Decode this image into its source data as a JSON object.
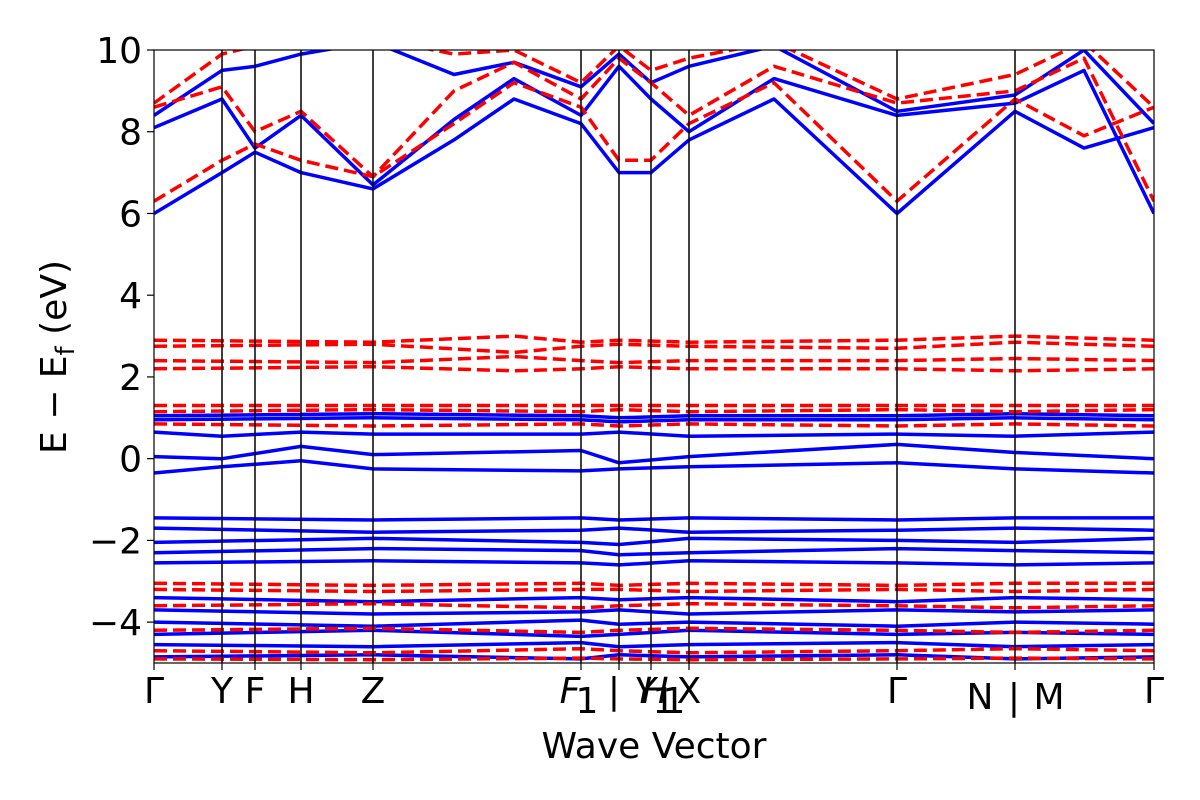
{
  "chart_data": {
    "type": "line",
    "xlabel": "Wave Vector",
    "ylabel": "E − E_f (eV)",
    "ylabel_parts": {
      "prefix": "E − E",
      "subscript": "f",
      "suffix": " (eV)"
    },
    "ylim": [
      -5,
      10
    ],
    "y_ticks": [
      -4,
      -2,
      0,
      2,
      4,
      6,
      8,
      10
    ],
    "y_tick_labels": [
      "−4",
      "−2",
      "0",
      "2",
      "4",
      "6",
      "8",
      "10"
    ],
    "k_points": [
      {
        "label": "Γ",
        "x": 0.0
      },
      {
        "label": "Y",
        "x": 0.068
      },
      {
        "label": "F",
        "x": 0.101
      },
      {
        "label": "H",
        "x": 0.147
      },
      {
        "label": "Z",
        "x": 0.219
      },
      {
        "label": "F₁ | Y₁",
        "x": 0.427,
        "x2": 0.465
      },
      {
        "label": "H₁",
        "x": 0.497
      },
      {
        "label": "X",
        "x": 0.535
      },
      {
        "label": "Γ",
        "x": 0.743
      },
      {
        "label": "N | M",
        "x": 0.861
      },
      {
        "label": "Γ",
        "x": 1.0
      }
    ],
    "tick_label_strings": [
      "Γ",
      "Y",
      "F",
      "H",
      "Z",
      "F",
      "1",
      "|",
      "Y",
      "H",
      "1",
      "1",
      "X",
      "Γ",
      "N",
      "|",
      "M",
      "Γ"
    ],
    "series": [
      {
        "color": "#0000ff",
        "style": "solid",
        "bands": [
          {
            "x": [
              0,
              0.068,
              0.101,
              0.147,
              0.219,
              0.3,
              0.36,
              0.427,
              0.465,
              0.497,
              0.535,
              0.62,
              0.743,
              0.861,
              0.93,
              1.0
            ],
            "y": [
              6.0,
              7.0,
              7.5,
              7.0,
              6.6,
              7.8,
              8.8,
              8.2,
              7.0,
              7.0,
              7.8,
              8.8,
              6.0,
              8.5,
              7.6,
              8.1
            ]
          },
          {
            "x": [
              0,
              0.068,
              0.101,
              0.147,
              0.219,
              0.3,
              0.36,
              0.427,
              0.465,
              0.497,
              0.535,
              0.62,
              0.743,
              0.861,
              0.93,
              1.0
            ],
            "y": [
              8.1,
              8.8,
              7.6,
              8.4,
              6.7,
              8.3,
              9.3,
              8.4,
              9.6,
              8.8,
              8.0,
              9.3,
              8.4,
              8.7,
              9.5,
              6.0
            ]
          },
          {
            "x": [
              0,
              0.068,
              0.101,
              0.147,
              0.219,
              0.3,
              0.36,
              0.427,
              0.465,
              0.497,
              0.535,
              0.62,
              0.743,
              0.861,
              0.93,
              1.0
            ],
            "y": [
              8.4,
              9.5,
              9.6,
              9.9,
              10.2,
              9.4,
              9.7,
              9.1,
              9.9,
              9.2,
              9.6,
              10.1,
              8.5,
              8.9,
              10.0,
              8.2
            ]
          },
          {
            "x": [
              0,
              0.219,
              0.427,
              0.465,
              0.535,
              0.743,
              0.861,
              1.0
            ],
            "y": [
              1.05,
              1.1,
              1.05,
              1.0,
              1.05,
              1.05,
              1.1,
              1.05
            ]
          },
          {
            "x": [
              0,
              0.219,
              0.427,
              0.465,
              0.535,
              0.743,
              0.861,
              1.0
            ],
            "y": [
              0.95,
              1.0,
              0.95,
              0.9,
              0.95,
              0.95,
              1.0,
              0.95
            ]
          },
          {
            "x": [
              0,
              0.068,
              0.147,
              0.219,
              0.427,
              0.465,
              0.535,
              0.743,
              0.861,
              1.0
            ],
            "y": [
              0.65,
              0.55,
              0.65,
              0.6,
              0.6,
              0.65,
              0.55,
              0.6,
              0.55,
              0.65
            ]
          },
          {
            "x": [
              0,
              0.068,
              0.147,
              0.219,
              0.427,
              0.465,
              0.535,
              0.743,
              0.861,
              1.0
            ],
            "y": [
              0.05,
              0.0,
              0.3,
              0.1,
              0.2,
              -0.1,
              0.05,
              0.35,
              0.15,
              0.0
            ]
          },
          {
            "x": [
              0,
              0.068,
              0.147,
              0.219,
              0.427,
              0.465,
              0.535,
              0.743,
              0.861,
              1.0
            ],
            "y": [
              -0.35,
              -0.2,
              -0.05,
              -0.25,
              -0.3,
              -0.25,
              -0.2,
              -0.1,
              -0.25,
              -0.35
            ]
          },
          {
            "x": [
              0,
              0.219,
              0.427,
              0.465,
              0.535,
              0.743,
              0.861,
              1.0
            ],
            "y": [
              -1.45,
              -1.5,
              -1.45,
              -1.5,
              -1.45,
              -1.5,
              -1.45,
              -1.45
            ]
          },
          {
            "x": [
              0,
              0.219,
              0.427,
              0.465,
              0.535,
              0.743,
              0.861,
              1.0
            ],
            "y": [
              -1.7,
              -1.8,
              -1.75,
              -1.7,
              -1.8,
              -1.75,
              -1.7,
              -1.75
            ]
          },
          {
            "x": [
              0,
              0.219,
              0.427,
              0.465,
              0.535,
              0.743,
              0.861,
              1.0
            ],
            "y": [
              -2.05,
              -1.95,
              -2.05,
              -2.1,
              -1.95,
              -2.0,
              -2.05,
              -1.95
            ]
          },
          {
            "x": [
              0,
              0.219,
              0.427,
              0.465,
              0.535,
              0.743,
              0.861,
              1.0
            ],
            "y": [
              -2.3,
              -2.2,
              -2.25,
              -2.35,
              -2.3,
              -2.2,
              -2.25,
              -2.3
            ]
          },
          {
            "x": [
              0,
              0.219,
              0.427,
              0.465,
              0.535,
              0.743,
              0.861,
              1.0
            ],
            "y": [
              -2.55,
              -2.5,
              -2.55,
              -2.6,
              -2.5,
              -2.55,
              -2.6,
              -2.55
            ]
          },
          {
            "x": [
              0,
              0.219,
              0.427,
              0.465,
              0.535,
              0.743,
              0.861,
              1.0
            ],
            "y": [
              -3.4,
              -3.5,
              -3.4,
              -3.45,
              -3.4,
              -3.5,
              -3.4,
              -3.45
            ]
          },
          {
            "x": [
              0,
              0.219,
              0.427,
              0.465,
              0.535,
              0.743,
              0.861,
              1.0
            ],
            "y": [
              -3.7,
              -3.8,
              -3.75,
              -3.7,
              -3.8,
              -3.7,
              -3.75,
              -3.7
            ]
          },
          {
            "x": [
              0,
              0.219,
              0.427,
              0.465,
              0.535,
              0.743,
              0.861,
              1.0
            ],
            "y": [
              -4.0,
              -4.1,
              -3.95,
              -4.05,
              -4.0,
              -4.1,
              -4.0,
              -4.05
            ]
          },
          {
            "x": [
              0,
              0.219,
              0.427,
              0.465,
              0.535,
              0.743,
              0.861,
              1.0
            ],
            "y": [
              -4.3,
              -4.2,
              -4.35,
              -4.3,
              -4.2,
              -4.3,
              -4.25,
              -4.3
            ]
          },
          {
            "x": [
              0,
              0.219,
              0.427,
              0.465,
              0.535,
              0.743,
              0.861,
              1.0
            ],
            "y": [
              -4.55,
              -4.6,
              -4.5,
              -4.6,
              -4.55,
              -4.5,
              -4.6,
              -4.55
            ]
          },
          {
            "x": [
              0,
              0.219,
              0.427,
              0.465,
              0.535,
              0.743,
              0.861,
              1.0
            ],
            "y": [
              -4.85,
              -4.8,
              -4.9,
              -4.8,
              -4.85,
              -4.8,
              -4.9,
              -4.85
            ]
          }
        ]
      },
      {
        "color": "#ff0000",
        "style": "dashed",
        "bands": [
          {
            "x": [
              0,
              0.068,
              0.101,
              0.147,
              0.219,
              0.3,
              0.36,
              0.427,
              0.465,
              0.497,
              0.535,
              0.62,
              0.743,
              0.861,
              0.93,
              1.0
            ],
            "y": [
              6.3,
              7.3,
              7.7,
              7.3,
              6.9,
              8.2,
              9.2,
              8.6,
              7.3,
              7.3,
              8.2,
              9.2,
              6.3,
              8.8,
              7.9,
              8.6
            ]
          },
          {
            "x": [
              0,
              0.068,
              0.101,
              0.147,
              0.219,
              0.3,
              0.36,
              0.427,
              0.465,
              0.497,
              0.535,
              0.62,
              0.743,
              0.861,
              0.93,
              1.0
            ],
            "y": [
              8.6,
              9.1,
              8.0,
              8.5,
              6.9,
              9.0,
              9.7,
              8.8,
              9.8,
              9.2,
              8.4,
              9.6,
              8.7,
              9.0,
              9.8,
              6.3
            ]
          },
          {
            "x": [
              0,
              0.068,
              0.101,
              0.147,
              0.219,
              0.3,
              0.36,
              0.427,
              0.465,
              0.497,
              0.535,
              0.62,
              0.743,
              0.861,
              0.93,
              1.0
            ],
            "y": [
              8.7,
              9.9,
              10.1,
              10.2,
              10.3,
              9.9,
              10.0,
              9.2,
              10.1,
              9.5,
              9.8,
              10.2,
              8.8,
              9.4,
              10.2,
              8.6
            ]
          },
          {
            "x": [
              0,
              0.219,
              0.36,
              0.427,
              0.465,
              0.535,
              0.743,
              0.861,
              1.0
            ],
            "y": [
              2.9,
              2.85,
              3.0,
              2.85,
              2.9,
              2.85,
              2.9,
              3.0,
              2.9
            ]
          },
          {
            "x": [
              0,
              0.219,
              0.36,
              0.427,
              0.465,
              0.535,
              0.743,
              0.861,
              1.0
            ],
            "y": [
              2.75,
              2.8,
              2.6,
              2.75,
              2.8,
              2.75,
              2.7,
              2.85,
              2.75
            ]
          },
          {
            "x": [
              0,
              0.219,
              0.36,
              0.427,
              0.465,
              0.535,
              0.743,
              0.861,
              1.0
            ],
            "y": [
              2.4,
              2.35,
              2.5,
              2.4,
              2.35,
              2.4,
              2.4,
              2.45,
              2.4
            ]
          },
          {
            "x": [
              0,
              0.219,
              0.36,
              0.427,
              0.465,
              0.535,
              0.743,
              0.861,
              1.0
            ],
            "y": [
              2.2,
              2.25,
              2.15,
              2.2,
              2.25,
              2.2,
              2.2,
              2.15,
              2.2
            ]
          },
          {
            "x": [
              0,
              0.219,
              0.427,
              0.465,
              0.535,
              0.743,
              0.861,
              1.0
            ],
            "y": [
              1.3,
              1.3,
              1.3,
              1.3,
              1.3,
              1.3,
              1.3,
              1.3
            ]
          },
          {
            "x": [
              0,
              0.219,
              0.427,
              0.465,
              0.535,
              0.743,
              0.861,
              1.0
            ],
            "y": [
              1.15,
              1.2,
              1.15,
              1.2,
              1.15,
              1.2,
              1.15,
              1.2
            ]
          },
          {
            "x": [
              0,
              0.219,
              0.427,
              0.465,
              0.535,
              0.743,
              0.861,
              1.0
            ],
            "y": [
              0.85,
              0.8,
              0.85,
              0.8,
              0.85,
              0.8,
              0.85,
              0.8
            ]
          },
          {
            "x": [
              0,
              0.219,
              0.427,
              0.465,
              0.535,
              0.743,
              0.861,
              1.0
            ],
            "y": [
              -3.05,
              -3.1,
              -3.05,
              -3.1,
              -3.05,
              -3.1,
              -3.05,
              -3.05
            ]
          },
          {
            "x": [
              0,
              0.219,
              0.427,
              0.465,
              0.535,
              0.743,
              0.861,
              1.0
            ],
            "y": [
              -3.2,
              -3.25,
              -3.2,
              -3.2,
              -3.25,
              -3.2,
              -3.25,
              -3.2
            ]
          },
          {
            "x": [
              0,
              0.219,
              0.427,
              0.465,
              0.535,
              0.743,
              0.861,
              1.0
            ],
            "y": [
              -3.6,
              -3.55,
              -3.65,
              -3.6,
              -3.55,
              -3.6,
              -3.65,
              -3.6
            ]
          },
          {
            "x": [
              0,
              0.219,
              0.427,
              0.465,
              0.535,
              0.743,
              0.861,
              1.0
            ],
            "y": [
              -4.2,
              -4.15,
              -4.25,
              -4.2,
              -4.15,
              -4.2,
              -4.25,
              -4.2
            ]
          },
          {
            "x": [
              0,
              0.219,
              0.427,
              0.465,
              0.535,
              0.743,
              0.861,
              1.0
            ],
            "y": [
              -4.7,
              -4.75,
              -4.65,
              -4.7,
              -4.75,
              -4.7,
              -4.65,
              -4.7
            ]
          },
          {
            "x": [
              0,
              0.219,
              0.427,
              0.465,
              0.535,
              0.743,
              0.861,
              1.0
            ],
            "y": [
              -4.9,
              -4.92,
              -4.88,
              -4.9,
              -4.92,
              -4.9,
              -4.88,
              -4.9
            ]
          }
        ]
      }
    ]
  }
}
